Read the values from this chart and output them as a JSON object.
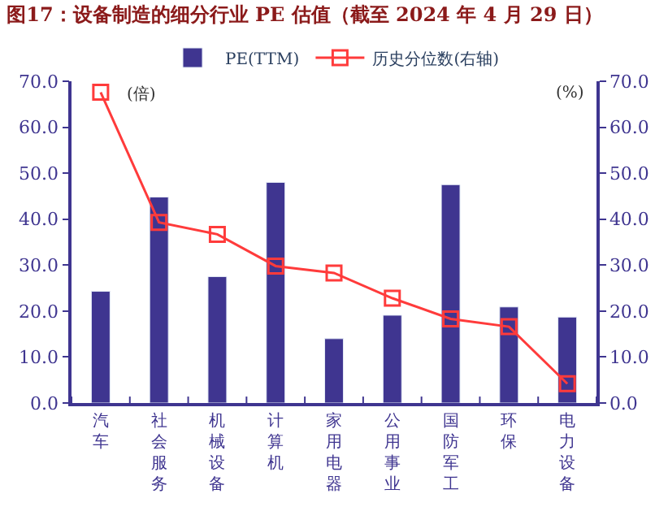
{
  "chart_data": {
    "type": "bar",
    "title": "图17：设备制造的细分行业 PE 估值（截至 2024 年 4 月 29 日）",
    "categories": [
      "汽车",
      "社会服务",
      "机械设备",
      "计算机",
      "家用电器",
      "公用事业",
      "国防军工",
      "环保",
      "电力设备"
    ],
    "series": [
      {
        "name": "PE(TTM)",
        "color": "#3f3590",
        "values": [
          24.3,
          44.8,
          27.5,
          48.0,
          14.0,
          19.1,
          47.5,
          20.9,
          18.7
        ]
      },
      {
        "name": "历史分位数(右轴)",
        "type": "line",
        "axis": "y2",
        "color": "#ff3b3b",
        "marker": "square",
        "values": [
          67.6,
          39.3,
          36.7,
          29.8,
          28.3,
          22.8,
          18.3,
          16.6,
          4.2
        ]
      }
    ],
    "ylim": [
      0,
      70
    ],
    "yticks": [
      {
        "value": 0,
        "label": "0.0"
      },
      {
        "value": 10,
        "label": "10.0"
      },
      {
        "value": 20,
        "label": "20.0"
      },
      {
        "value": 30,
        "label": "30.0"
      },
      {
        "value": 40,
        "label": "40.0"
      },
      {
        "value": 50,
        "label": "50.0"
      },
      {
        "value": 60,
        "label": "60.0"
      },
      {
        "value": 70,
        "label": "70.0"
      }
    ],
    "y2lim": [
      0,
      70
    ],
    "y2ticks": [
      {
        "value": 0,
        "label": "0.0"
      },
      {
        "value": 10,
        "label": "10.0"
      },
      {
        "value": 20,
        "label": "20.0"
      },
      {
        "value": 30,
        "label": "30.0"
      },
      {
        "value": 40,
        "label": "40.0"
      },
      {
        "value": 50,
        "label": "50.0"
      },
      {
        "value": 60,
        "label": "60.0"
      },
      {
        "value": 70,
        "label": "70.0"
      }
    ],
    "annotations": [
      "(倍)",
      "(%)"
    ],
    "legend": "top"
  }
}
